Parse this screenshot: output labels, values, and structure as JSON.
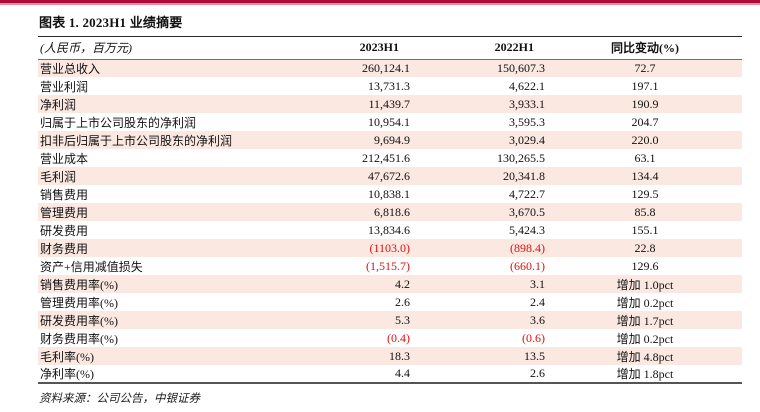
{
  "page": {
    "title": "图表 1. 2023H1 业绩摘要",
    "source_note": "资料来源：公司公告，中银证券"
  },
  "colors": {
    "accent_bar": "#b10a38",
    "accent_bar_underline": "#dd93a2",
    "row_stripe_pink": "#fbe8e1",
    "negative_red": "#e01010"
  },
  "table": {
    "headers": [
      "(人民币，百万元)",
      "2023H1",
      "2022H1",
      "同比变动(%)"
    ],
    "rows": [
      {
        "label": "营业总收入",
        "v2023": "260,124.1",
        "v2022": "150,607.3",
        "yoy": "72.7"
      },
      {
        "label": "营业利润",
        "v2023": "13,731.3",
        "v2022": "4,622.1",
        "yoy": "197.1"
      },
      {
        "label": "净利润",
        "v2023": "11,439.7",
        "v2022": "3,933.1",
        "yoy": "190.9"
      },
      {
        "label": "归属于上市公司股东的净利润",
        "v2023": "10,954.1",
        "v2022": "3,595.3",
        "yoy": "204.7"
      },
      {
        "label": "扣非后归属于上市公司股东的净利润",
        "v2023": "9,694.9",
        "v2022": "3,029.4",
        "yoy": "220.0"
      },
      {
        "label": "营业成本",
        "v2023": "212,451.6",
        "v2022": "130,265.5",
        "yoy": "63.1"
      },
      {
        "label": "毛利润",
        "v2023": "47,672.6",
        "v2022": "20,341.8",
        "yoy": "134.4"
      },
      {
        "label": "销售费用",
        "v2023": "10,838.1",
        "v2022": "4,722.7",
        "yoy": "129.5"
      },
      {
        "label": "管理费用",
        "v2023": "6,818.6",
        "v2022": "3,670.5",
        "yoy": "85.8"
      },
      {
        "label": "研发费用",
        "v2023": "13,834.6",
        "v2022": "5,424.3",
        "yoy": "155.1"
      },
      {
        "label": "财务费用",
        "v2023": "(1103.0)",
        "v2022": "(898.4)",
        "yoy": "22.8"
      },
      {
        "label": "资产+信用减值损失",
        "v2023": "(1,515.7)",
        "v2022": "(660.1)",
        "yoy": "129.6"
      },
      {
        "label": "销售费用率(%)",
        "v2023": "4.2",
        "v2022": "3.1",
        "yoy": "增加 1.0pct"
      },
      {
        "label": "管理费用率(%)",
        "v2023": "2.6",
        "v2022": "2.4",
        "yoy": "增加 0.2pct"
      },
      {
        "label": "研发费用率(%)",
        "v2023": "5.3",
        "v2022": "3.6",
        "yoy": "增加 1.7pct"
      },
      {
        "label": "财务费用率(%)",
        "v2023": "(0.4)",
        "v2022": "(0.6)",
        "yoy": "增加 0.2pct"
      },
      {
        "label": "毛利率(%)",
        "v2023": "18.3",
        "v2022": "13.5",
        "yoy": "增加 4.8pct"
      },
      {
        "label": "净利率(%)",
        "v2023": "4.4",
        "v2022": "2.6",
        "yoy": "增加 1.8pct"
      }
    ]
  }
}
